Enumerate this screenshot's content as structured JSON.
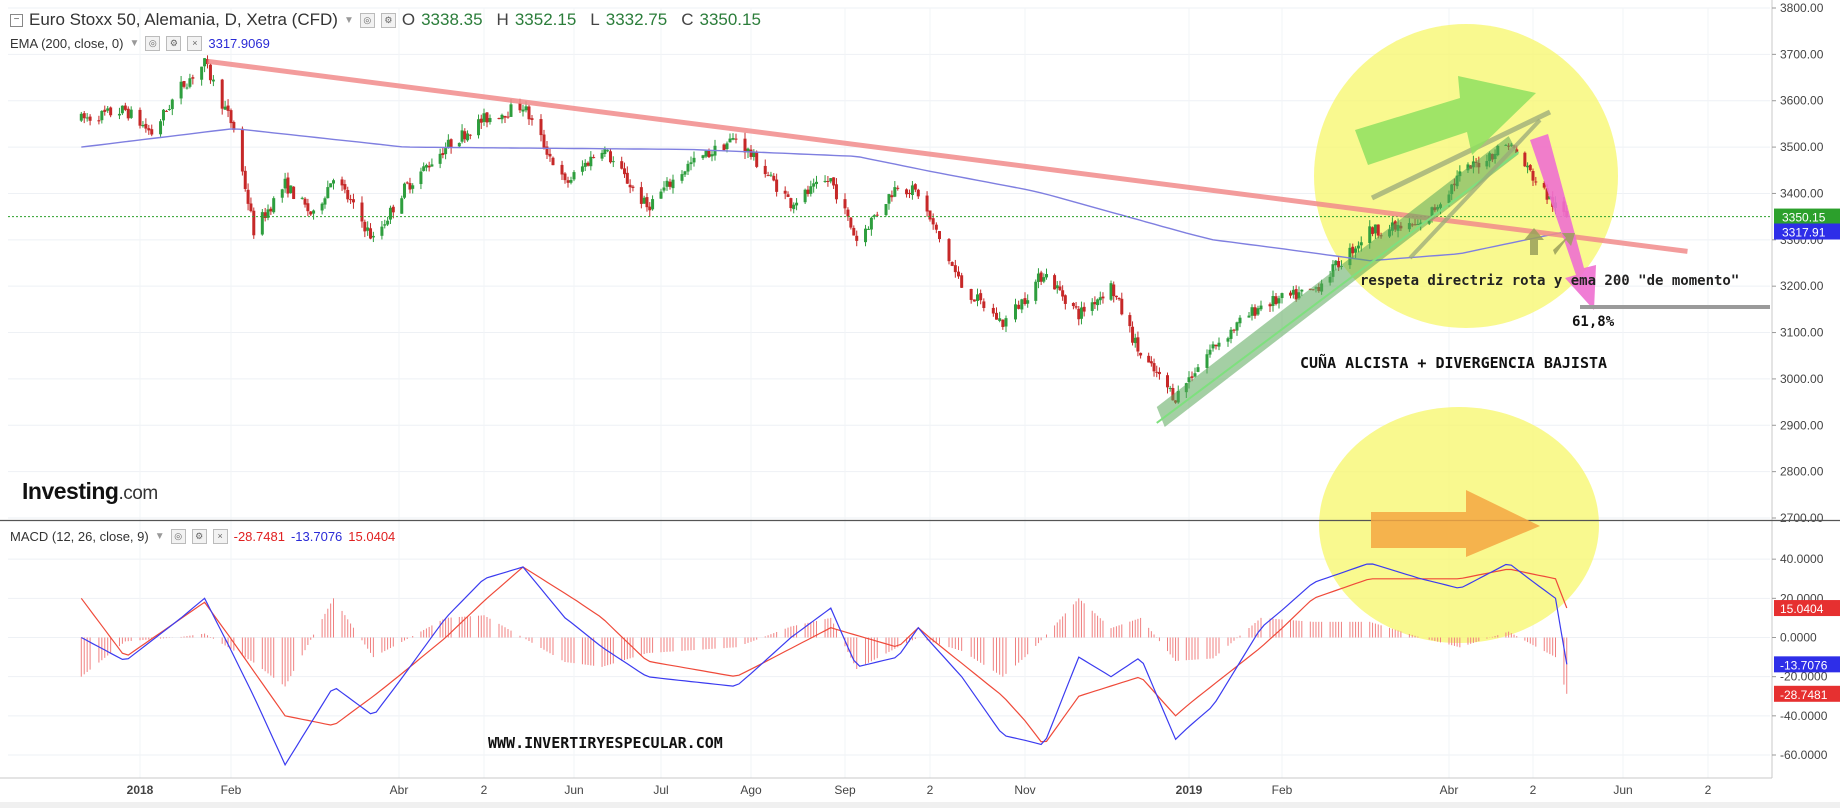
{
  "header": {
    "symbol_title": "Euro Stoxx 50, Alemania, D, Xetra (CFD)",
    "ohlc": [
      {
        "key": "O",
        "value": "3338.35"
      },
      {
        "key": "H",
        "value": "3352.15"
      },
      {
        "key": "L",
        "value": "3332.75"
      },
      {
        "key": "C",
        "value": "3350.15"
      }
    ],
    "ema_label": "EMA (200, close, 0)",
    "ema_value": "3317.9069",
    "macd_label": "MACD (12, 26, close, 9)",
    "macd_values": [
      "-28.7481",
      "-13.7076",
      "15.0404"
    ]
  },
  "logo": {
    "brand": "Investing",
    "suffix": ".com"
  },
  "annotations": {
    "wedge_note": "respeta directriz rota y ema 200 \"de momento\"",
    "fib_label": "61,8%",
    "pattern_label": "CUÑA ALCISTA + DIVERGENCIA BAJISTA",
    "website": "WWW.INVERTIRYESPECULAR.COM"
  },
  "colors": {
    "up_candle": "#2e9e3e",
    "down_candle": "#c62828",
    "ema_line": "#7f7fe0",
    "trendline": "#f28b8b",
    "macd_line": "#3b3bf0",
    "signal_line": "#ef4a3a",
    "histogram": "#f08080",
    "highlight": "#f7f76a",
    "wedge_fill": "#5aa85a",
    "arrow_green": "#8fe060",
    "arrow_pink": "#ee6fd0",
    "arrow_orange": "#f5a742",
    "price_badge": "#2ca02c",
    "ema_badge": "#2e2ee8",
    "macd_badge_red": "#e63030",
    "macd_badge_blue": "#2e2ee8"
  },
  "chart_data": [
    {
      "type": "candlestick",
      "title": "Euro Stoxx 50, Alemania, D, Xetra (CFD)",
      "x_ticks": [
        "2018",
        "Feb",
        "Abr",
        "2",
        "Jun",
        "Jul",
        "Ago",
        "Sep",
        "2",
        "Nov",
        "2019",
        "Feb",
        "Abr",
        "2",
        "Jun",
        "2"
      ],
      "y_ticks": [
        "3800.00",
        "3700.00",
        "3600.00",
        "3500.00",
        "3400.00",
        "3300.00",
        "3200.00",
        "3100.00",
        "3000.00",
        "2900.00",
        "2800.00",
        "2700.00"
      ],
      "ylim": [
        2700,
        3800
      ],
      "price_path": [
        {
          "date": "2017-12-12",
          "close": 3560
        },
        {
          "date": "2017-12-27",
          "close": 3580
        },
        {
          "date": "2018-01-05",
          "close": 3530
        },
        {
          "date": "2018-01-15",
          "close": 3630
        },
        {
          "date": "2018-01-23",
          "close": 3680
        },
        {
          "date": "2018-02-02",
          "close": 3540
        },
        {
          "date": "2018-02-09",
          "close": 3320
        },
        {
          "date": "2018-02-20",
          "close": 3420
        },
        {
          "date": "2018-03-02",
          "close": 3350
        },
        {
          "date": "2018-03-09",
          "close": 3440
        },
        {
          "date": "2018-03-23",
          "close": 3300
        },
        {
          "date": "2018-04-03",
          "close": 3410
        },
        {
          "date": "2018-04-18",
          "close": 3500
        },
        {
          "date": "2018-05-02",
          "close": 3560
        },
        {
          "date": "2018-05-15",
          "close": 3590
        },
        {
          "date": "2018-05-29",
          "close": 3420
        },
        {
          "date": "2018-06-11",
          "close": 3500
        },
        {
          "date": "2018-06-27",
          "close": 3370
        },
        {
          "date": "2018-07-11",
          "close": 3460
        },
        {
          "date": "2018-07-27",
          "close": 3520
        },
        {
          "date": "2018-08-15",
          "close": 3380
        },
        {
          "date": "2018-08-29",
          "close": 3430
        },
        {
          "date": "2018-09-07",
          "close": 3300
        },
        {
          "date": "2018-09-21",
          "close": 3420
        },
        {
          "date": "2018-09-28",
          "close": 3400
        },
        {
          "date": "2018-10-12",
          "close": 3200
        },
        {
          "date": "2018-10-25",
          "close": 3120
        },
        {
          "date": "2018-11-08",
          "close": 3230
        },
        {
          "date": "2018-11-21",
          "close": 3140
        },
        {
          "date": "2018-12-03",
          "close": 3200
        },
        {
          "date": "2018-12-14",
          "close": 3050
        },
        {
          "date": "2018-12-27",
          "close": 2960
        },
        {
          "date": "2019-01-09",
          "close": 3070
        },
        {
          "date": "2019-01-25",
          "close": 3160
        },
        {
          "date": "2019-02-12",
          "close": 3190
        },
        {
          "date": "2019-03-04",
          "close": 3320
        },
        {
          "date": "2019-03-22",
          "close": 3330
        },
        {
          "date": "2019-04-05",
          "close": 3440
        },
        {
          "date": "2019-04-23",
          "close": 3510
        },
        {
          "date": "2019-05-10",
          "close": 3370
        },
        {
          "date": "2019-05-14",
          "close": 3350.15
        }
      ],
      "ema200_path": [
        {
          "date": "2017-12-12",
          "value": 3500
        },
        {
          "date": "2018-02-02",
          "value": 3540
        },
        {
          "date": "2018-04-03",
          "value": 3500
        },
        {
          "date": "2018-07-11",
          "value": 3495
        },
        {
          "date": "2018-09-07",
          "value": 3480
        },
        {
          "date": "2018-11-08",
          "value": 3400
        },
        {
          "date": "2019-01-09",
          "value": 3300
        },
        {
          "date": "2019-03-04",
          "value": 3255
        },
        {
          "date": "2019-04-05",
          "value": 3270
        },
        {
          "date": "2019-05-14",
          "value": 3317.91
        }
      ],
      "trendline": [
        {
          "date": "2018-01-24",
          "value": 3685
        },
        {
          "date": "2019-06-25",
          "value": 3275
        }
      ],
      "wedge_support": [
        {
          "date": "2018-12-20",
          "value": 2905
        },
        {
          "date": "2019-04-23",
          "value": 3515
        }
      ],
      "fib_level": {
        "label": "61,8%",
        "value": 3155
      },
      "price_labels": [
        {
          "label": "3350.15",
          "value": 3350.15
        },
        {
          "label": "3317.91",
          "value": 3317.91
        }
      ],
      "horizontal_line": 3350.15
    },
    {
      "type": "macd",
      "title": "MACD (12, 26, close, 9)",
      "y_ticks": [
        "40.0000",
        "20.0000",
        "0.0000",
        "-20.0000",
        "-40.0000",
        "-60.0000"
      ],
      "ylim": [
        -68,
        60
      ],
      "macd_path": [
        {
          "date": "2017-12-12",
          "value": 0
        },
        {
          "date": "2017-12-27",
          "value": -12
        },
        {
          "date": "2018-01-15",
          "value": 10
        },
        {
          "date": "2018-01-23",
          "value": 20
        },
        {
          "date": "2018-02-09",
          "value": -30
        },
        {
          "date": "2018-02-20",
          "value": -65
        },
        {
          "date": "2018-03-09",
          "value": -25
        },
        {
          "date": "2018-03-23",
          "value": -40
        },
        {
          "date": "2018-04-18",
          "value": 10
        },
        {
          "date": "2018-05-02",
          "value": 30
        },
        {
          "date": "2018-05-15",
          "value": 36
        },
        {
          "date": "2018-05-29",
          "value": 10
        },
        {
          "date": "2018-06-11",
          "value": -5
        },
        {
          "date": "2018-06-27",
          "value": -20
        },
        {
          "date": "2018-07-27",
          "value": -25
        },
        {
          "date": "2018-08-15",
          "value": 0
        },
        {
          "date": "2018-08-29",
          "value": 15
        },
        {
          "date": "2018-09-07",
          "value": -15
        },
        {
          "date": "2018-09-21",
          "value": -10
        },
        {
          "date": "2018-09-28",
          "value": 5
        },
        {
          "date": "2018-10-12",
          "value": -20
        },
        {
          "date": "2018-10-25",
          "value": -50
        },
        {
          "date": "2018-11-08",
          "value": -55
        },
        {
          "date": "2018-11-21",
          "value": -10
        },
        {
          "date": "2018-12-03",
          "value": -20
        },
        {
          "date": "2018-12-14",
          "value": -10
        },
        {
          "date": "2018-12-27",
          "value": -52
        },
        {
          "date": "2019-01-09",
          "value": -35
        },
        {
          "date": "2019-01-25",
          "value": 5
        },
        {
          "date": "2019-02-12",
          "value": 28
        },
        {
          "date": "2019-03-04",
          "value": 38
        },
        {
          "date": "2019-03-22",
          "value": 30
        },
        {
          "date": "2019-04-05",
          "value": 25
        },
        {
          "date": "2019-04-23",
          "value": 38
        },
        {
          "date": "2019-05-10",
          "value": 20
        },
        {
          "date": "2019-05-14",
          "value": -13.7076
        }
      ],
      "signal_path": [
        {
          "date": "2017-12-12",
          "value": 20
        },
        {
          "date": "2017-12-27",
          "value": -10
        },
        {
          "date": "2018-01-23",
          "value": 18
        },
        {
          "date": "2018-02-20",
          "value": -40
        },
        {
          "date": "2018-03-09",
          "value": -45
        },
        {
          "date": "2018-03-23",
          "value": -30
        },
        {
          "date": "2018-04-18",
          "value": 0
        },
        {
          "date": "2018-05-15",
          "value": 36
        },
        {
          "date": "2018-06-11",
          "value": 10
        },
        {
          "date": "2018-06-27",
          "value": -12
        },
        {
          "date": "2018-07-27",
          "value": -20
        },
        {
          "date": "2018-08-29",
          "value": 5
        },
        {
          "date": "2018-09-21",
          "value": -5
        },
        {
          "date": "2018-09-28",
          "value": 5
        },
        {
          "date": "2018-10-25",
          "value": -30
        },
        {
          "date": "2018-11-08",
          "value": -55
        },
        {
          "date": "2018-11-21",
          "value": -30
        },
        {
          "date": "2018-12-14",
          "value": -20
        },
        {
          "date": "2018-12-27",
          "value": -40
        },
        {
          "date": "2019-01-25",
          "value": -5
        },
        {
          "date": "2019-02-12",
          "value": 20
        },
        {
          "date": "2019-03-04",
          "value": 30
        },
        {
          "date": "2019-04-05",
          "value": 30
        },
        {
          "date": "2019-04-23",
          "value": 35
        },
        {
          "date": "2019-05-10",
          "value": 30
        },
        {
          "date": "2019-05-14",
          "value": 15.0404
        }
      ],
      "histogram_value_latest": -28.7481,
      "price_labels": [
        {
          "label": "15.0404",
          "value": 15.0404
        },
        {
          "label": "-13.7076",
          "value": -13.7076
        },
        {
          "label": "-28.7481",
          "value": -28.7481
        }
      ]
    }
  ]
}
